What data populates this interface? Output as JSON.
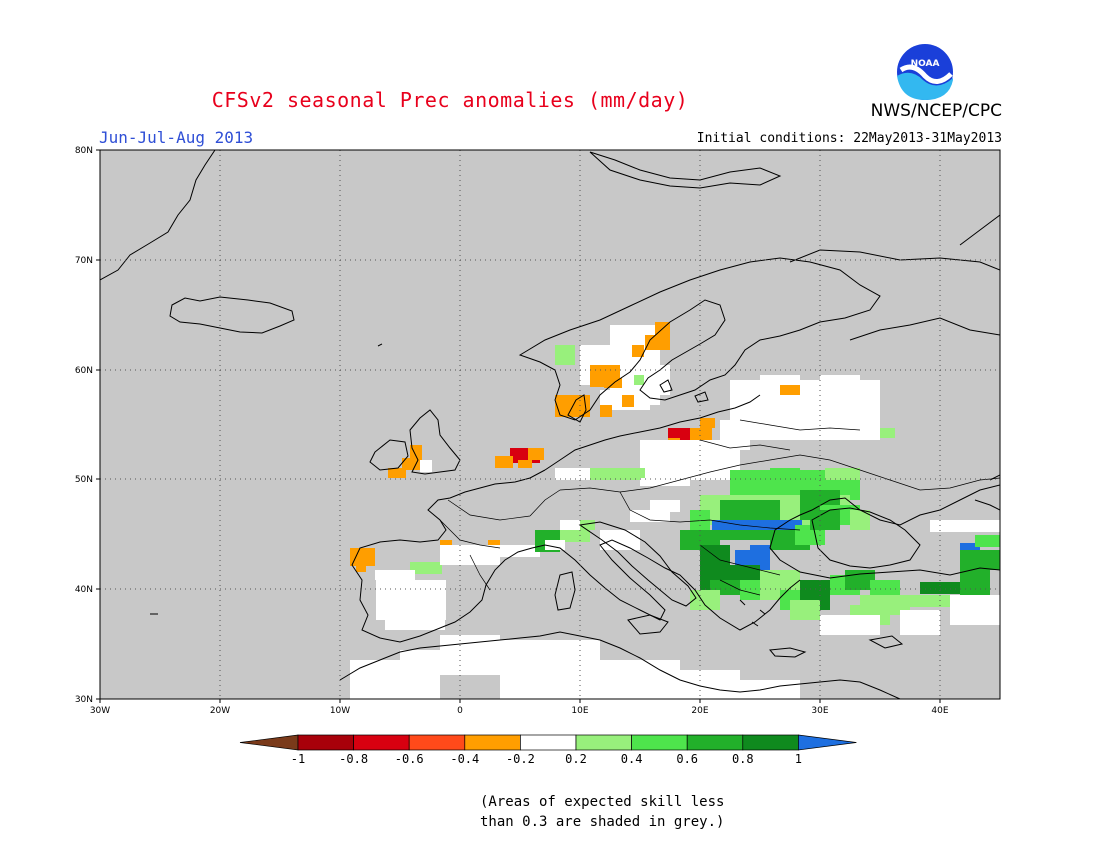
{
  "header": {
    "title": "CFSv2 seasonal Prec anomalies (mm/day)",
    "agency": "NWS/NCEP/CPC",
    "season": "Jun-Jul-Aug 2013",
    "initial_conditions": "Initial conditions: 22May2013-31May2013"
  },
  "map": {
    "lat_labels": [
      "80N",
      "70N",
      "60N",
      "50N",
      "40N",
      "30N"
    ],
    "lon_labels": [
      "30W",
      "20W",
      "10W",
      "0",
      "10E",
      "20E",
      "30E",
      "40E"
    ],
    "background_color": "#c8c8c8",
    "grid": true
  },
  "colorbar": {
    "labels": [
      "-1",
      "-0.8",
      "-0.6",
      "-0.4",
      "-0.2",
      "0.2",
      "0.4",
      "0.6",
      "0.8",
      "1"
    ],
    "colors": [
      "#7a3a1a",
      "#a8000a",
      "#d80010",
      "#ff4a1a",
      "#ff9e00",
      "#ffffff",
      "#98f07c",
      "#4ee44c",
      "#22b02a",
      "#0f8a1e",
      "#1e6fe0"
    ]
  },
  "footnote": "(Areas of expected skill less\nthan 0.3 are shaded in grey.)"
}
